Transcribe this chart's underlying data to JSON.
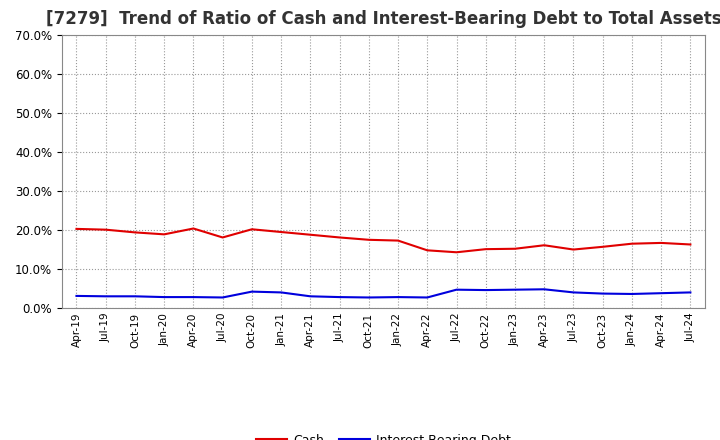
{
  "title": "[7279]  Trend of Ratio of Cash and Interest-Bearing Debt to Total Assets",
  "x_labels": [
    "Apr-19",
    "Jul-19",
    "Oct-19",
    "Jan-20",
    "Apr-20",
    "Jul-20",
    "Oct-20",
    "Jan-21",
    "Apr-21",
    "Jul-21",
    "Oct-21",
    "Jan-22",
    "Apr-22",
    "Jul-22",
    "Oct-22",
    "Jan-23",
    "Apr-23",
    "Jul-23",
    "Oct-23",
    "Jan-24",
    "Apr-24",
    "Jul-24"
  ],
  "cash": [
    0.203,
    0.201,
    0.194,
    0.189,
    0.204,
    0.181,
    0.202,
    0.195,
    0.188,
    0.181,
    0.175,
    0.173,
    0.148,
    0.143,
    0.151,
    0.152,
    0.161,
    0.15,
    0.157,
    0.165,
    0.167,
    0.163
  ],
  "interest_bearing_debt": [
    0.031,
    0.03,
    0.03,
    0.028,
    0.028,
    0.027,
    0.042,
    0.04,
    0.03,
    0.028,
    0.027,
    0.028,
    0.027,
    0.047,
    0.046,
    0.047,
    0.048,
    0.04,
    0.037,
    0.036,
    0.038,
    0.04
  ],
  "cash_color": "#e00000",
  "debt_color": "#0000dd",
  "bg_color": "#ffffff",
  "plot_bg_color": "#ffffff",
  "grid_color": "#999999",
  "ylim": [
    0.0,
    0.7
  ],
  "yticks": [
    0.0,
    0.1,
    0.2,
    0.3,
    0.4,
    0.5,
    0.6,
    0.7
  ],
  "title_fontsize": 12,
  "title_color": "#333333",
  "legend_cash": "Cash",
  "legend_debt": "Interest-Bearing Debt"
}
